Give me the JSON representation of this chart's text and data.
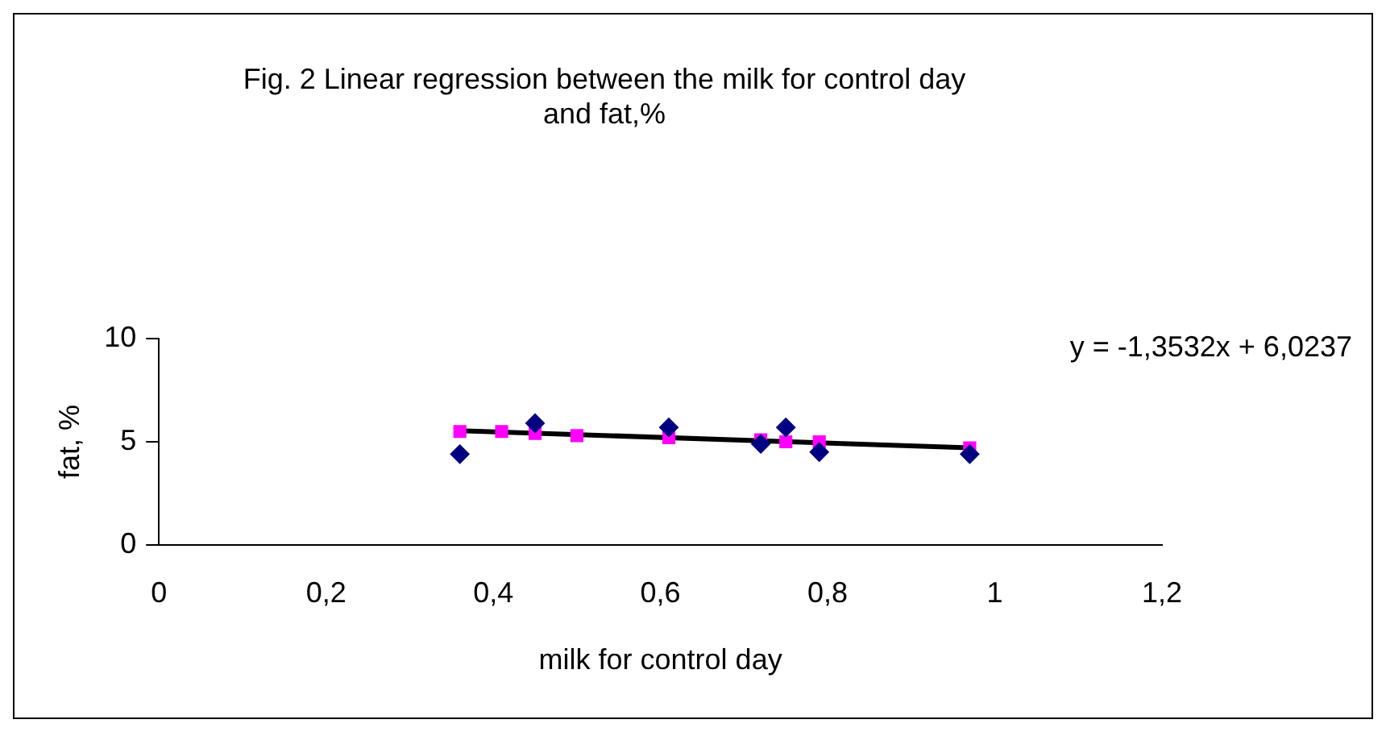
{
  "chart_data": {
    "type": "scatter",
    "title": [
      "Fig. 2 Linear regression between the milk for control day",
      "and fat,%"
    ],
    "xlabel": "milk for control day",
    "ylabel": "fat, %",
    "x": [
      0.36,
      0.41,
      0.45,
      0.5,
      0.61,
      0.72,
      0.75,
      0.79,
      0.97
    ],
    "series": [
      {
        "marker": "diamond",
        "color": "#000080",
        "values": [
          4.4,
          null,
          5.9,
          null,
          5.7,
          4.9,
          5.7,
          4.5,
          4.4
        ]
      },
      {
        "marker": "square",
        "color": "#ff00ff",
        "values": [
          5.5,
          5.5,
          5.4,
          5.3,
          5.2,
          5.1,
          5.0,
          5.0,
          4.7
        ]
      },
      {
        "type": "line",
        "marker": "none",
        "color": "#000000",
        "x": [
          0.36,
          0.97
        ],
        "values": [
          5.54,
          4.71
        ]
      }
    ],
    "xlim": [
      0,
      1.2
    ],
    "xticks": [
      0,
      {
        "value": 0.2,
        "label": "0,2"
      },
      {
        "value": 0.4,
        "label": "0,4"
      },
      {
        "value": 0.6,
        "label": "0,6"
      },
      {
        "value": 0.8,
        "label": "0,8"
      },
      1,
      {
        "value": 1.2,
        "label": "1,2"
      }
    ],
    "ylim": [
      0,
      10
    ],
    "yticks": [
      0,
      5,
      10
    ],
    "grid": false,
    "legend": false,
    "annotations": [
      "y = -1,3532x + 6,0237"
    ]
  }
}
